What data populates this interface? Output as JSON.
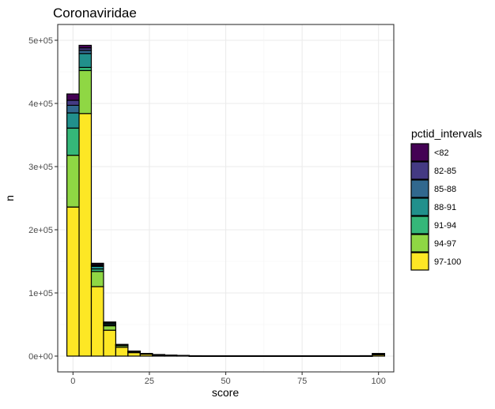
{
  "chart_data": {
    "type": "bar",
    "stacked": true,
    "title": "Coronaviridae",
    "xlabel": "score",
    "ylabel": "n",
    "xlim": [
      -5,
      105
    ],
    "ylim": [
      -25000,
      525000
    ],
    "x_ticks": [
      0,
      25,
      50,
      75,
      100
    ],
    "x_tick_labels": [
      "0",
      "25",
      "50",
      "75",
      "100"
    ],
    "y_ticks": [
      0,
      100000,
      200000,
      300000,
      400000,
      500000
    ],
    "y_tick_labels": [
      "0e+00",
      "1e+05",
      "2e+05",
      "3e+05",
      "4e+05",
      "5e+05"
    ],
    "bin_width": 4,
    "bin_centers": [
      0,
      4,
      8,
      12,
      16,
      20,
      24,
      28,
      32,
      36,
      40,
      44,
      48,
      52,
      56,
      60,
      64,
      68,
      72,
      76,
      80,
      84,
      88,
      92,
      96,
      100
    ],
    "grid": true,
    "legend": {
      "title": "pctid_intervals",
      "position": "right"
    },
    "series": [
      {
        "name": "<82",
        "color": "#440154",
        "values": [
          10000,
          4000,
          2000,
          1000,
          300,
          100,
          50,
          50,
          30,
          20,
          20,
          20,
          20,
          20,
          20,
          20,
          20,
          20,
          20,
          20,
          20,
          20,
          20,
          20,
          20,
          50
        ]
      },
      {
        "name": "82-85",
        "color": "#443A83",
        "values": [
          8000,
          4000,
          1500,
          800,
          250,
          100,
          50,
          50,
          30,
          20,
          20,
          20,
          20,
          20,
          20,
          20,
          20,
          20,
          20,
          20,
          20,
          20,
          20,
          20,
          20,
          100
        ]
      },
      {
        "name": "85-88",
        "color": "#31688E",
        "values": [
          12000,
          5000,
          1500,
          700,
          250,
          100,
          60,
          60,
          40,
          20,
          20,
          20,
          20,
          20,
          20,
          20,
          20,
          20,
          20,
          20,
          20,
          20,
          20,
          20,
          20,
          150
        ]
      },
      {
        "name": "88-91",
        "color": "#21908C",
        "values": [
          24000,
          22000,
          4000,
          2000,
          600,
          300,
          150,
          100,
          60,
          30,
          20,
          20,
          20,
          20,
          20,
          20,
          20,
          20,
          20,
          20,
          20,
          20,
          20,
          20,
          30,
          300
        ]
      },
      {
        "name": "91-94",
        "color": "#35B779",
        "values": [
          43000,
          5000,
          4000,
          1500,
          600,
          300,
          150,
          100,
          60,
          30,
          20,
          20,
          20,
          20,
          20,
          20,
          20,
          20,
          20,
          20,
          20,
          20,
          20,
          20,
          30,
          400
        ]
      },
      {
        "name": "94-97",
        "color": "#8FD744",
        "values": [
          82000,
          68000,
          24000,
          7000,
          2500,
          1500,
          700,
          300,
          150,
          60,
          40,
          30,
          30,
          30,
          30,
          30,
          30,
          30,
          30,
          30,
          30,
          30,
          30,
          30,
          50,
          1000
        ]
      },
      {
        "name": "97-100",
        "color": "#FDE725",
        "values": [
          236000,
          384000,
          110000,
          41000,
          14000,
          5500,
          3000,
          1800,
          1000,
          700,
          400,
          300,
          250,
          250,
          250,
          250,
          250,
          250,
          250,
          250,
          250,
          250,
          250,
          300,
          400,
          2000
        ]
      }
    ]
  }
}
